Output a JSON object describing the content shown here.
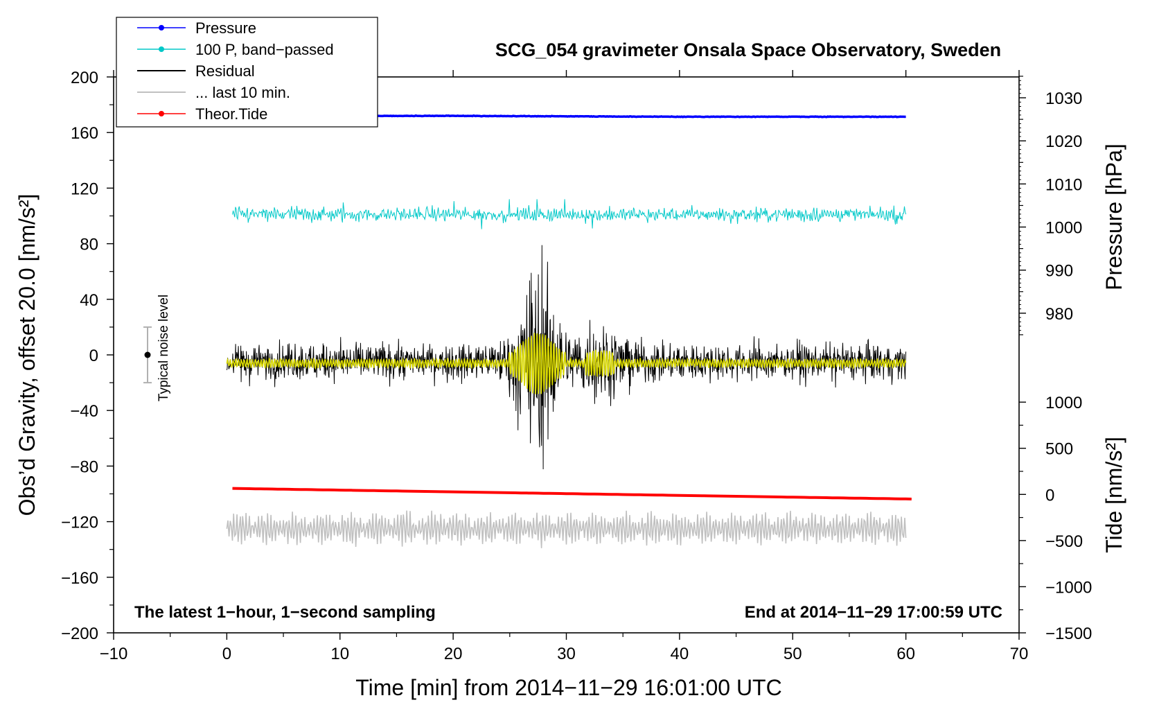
{
  "chart_data": {
    "type": "line",
    "title": "SCG_054 gravimeter Onsala Space Observatory, Sweden",
    "xlabel": "Time [min] from 2014−11−29 16:01:00 UTC",
    "ylabel": "Obs’d Gravity, offset 20.0 [nm/s²]",
    "xlim": [
      -10,
      70
    ],
    "ylim": [
      -200,
      200
    ],
    "xticks": [
      "−10",
      "0",
      "10",
      "20",
      "30",
      "40",
      "50",
      "60",
      "70"
    ],
    "xtick_values": [
      -10,
      0,
      10,
      20,
      30,
      40,
      50,
      60,
      70
    ],
    "yticks": [
      "200",
      "160",
      "120",
      "80",
      "40",
      "0",
      "−40",
      "−80",
      "−120",
      "−160",
      "−200"
    ],
    "ytick_values": [
      200,
      160,
      120,
      80,
      40,
      0,
      -40,
      -80,
      -120,
      -160,
      -200
    ],
    "right_axis_pressure": {
      "label": "Pressure [hPa]",
      "ticks": [
        "1030",
        "1020",
        "1010",
        "1000",
        "990",
        "980"
      ],
      "tick_values": [
        1030,
        1020,
        1010,
        1000,
        990,
        980
      ],
      "gravity_equiv": [
        [
          980,
          30
        ],
        [
          1030,
          185
        ]
      ]
    },
    "right_axis_tide": {
      "label": "Tide [nm/s²]",
      "ticks": [
        "1000",
        "500",
        "0",
        "−500",
        "−1000",
        "−1500"
      ],
      "tick_values": [
        1000,
        500,
        0,
        -500,
        -1000,
        -1500
      ],
      "gravity_equiv": [
        [
          1000,
          -34
        ],
        [
          -1500,
          -200
        ]
      ]
    },
    "legend": {
      "placement": "top-left",
      "entries": [
        {
          "label": "Pressure",
          "color": "#0000ff",
          "marker": true
        },
        {
          "label": "100 P, band−passed",
          "color": "#00c8c8",
          "marker": true
        },
        {
          "label": "Residual",
          "color": "#000000",
          "marker": false
        },
        {
          "label": "... last 10 min.",
          "color": "#c0c0c0",
          "marker": false
        },
        {
          "label": "Theor.Tide",
          "color": "#ff0000",
          "marker": true
        }
      ]
    },
    "series": [
      {
        "name": "Pressure",
        "color": "#0000ff",
        "axis": "pressure",
        "x": [
          0,
          10,
          20,
          30,
          40,
          50,
          60
        ],
        "values": [
          1025.7,
          1025.8,
          1025.8,
          1025.7,
          1025.6,
          1025.6,
          1025.6
        ]
      },
      {
        "name": "100 P, band−passed",
        "color": "#00c8c8",
        "axis": "gravity",
        "x_range": [
          0.5,
          60
        ],
        "center": 101,
        "amplitude_range": [
          84,
          112
        ]
      },
      {
        "name": "Residual",
        "color": "#000000",
        "axis": "gravity",
        "x_range": [
          0,
          60
        ],
        "center": -5,
        "amplitude_range": [
          -91,
          79
        ],
        "peak_x": 27.5
      },
      {
        "name": "Residual (smoothed)",
        "color": "#d8d800",
        "axis": "gravity",
        "x_range": [
          0,
          60
        ],
        "center": -6
      },
      {
        "name": "... last 10 min.",
        "color": "#c0c0c0",
        "axis": "gravity",
        "x_range": [
          0,
          60
        ],
        "center": -125,
        "amplitude_range": [
          -145,
          -105
        ]
      },
      {
        "name": "Theor.Tide",
        "color": "#ff0000",
        "axis": "tide",
        "x": [
          0.5,
          60.5
        ],
        "values": [
          65,
          -50
        ]
      }
    ],
    "annotations": [
      {
        "text": "Typical noise level",
        "x": -7,
        "value": 0,
        "error": 20
      }
    ],
    "notes": {
      "left": "The latest 1−hour, 1−second sampling",
      "right": "End at 2014−11−29 17:00:59 UTC"
    }
  }
}
